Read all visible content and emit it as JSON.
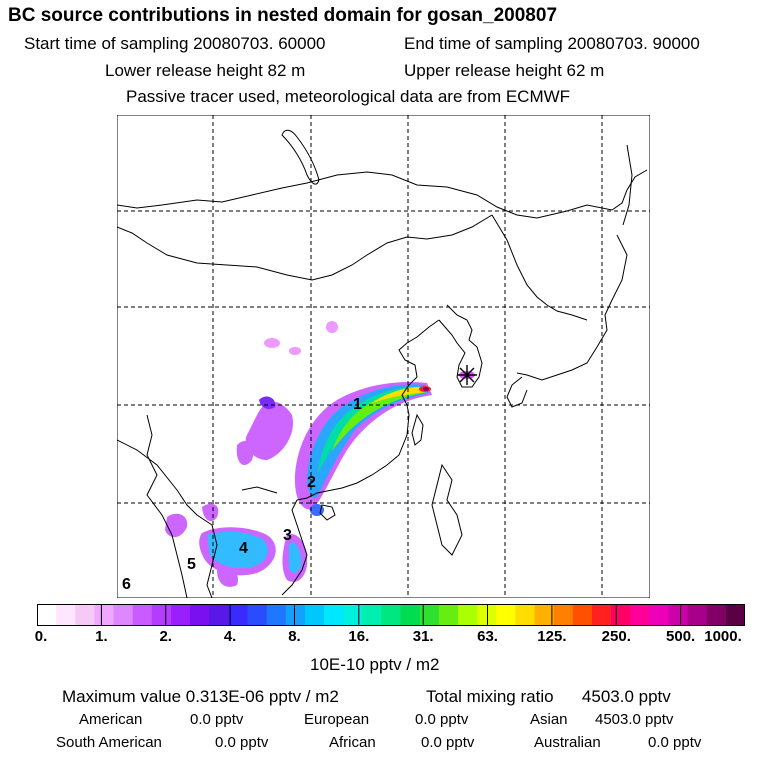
{
  "header": {
    "title": "BC  source contributions in nested domain for gosan_200807",
    "start": "Start time of sampling 20080703. 60000",
    "end": "End time of sampling 20080703. 90000",
    "lower": "Lower release height   82 m",
    "upper": "Upper release height   62 m",
    "tracer": "Passive tracer used, meteorological data are from ECMWF"
  },
  "map": {
    "site_marker": "star-icon",
    "region_labels": [
      "1",
      "2",
      "3",
      "4",
      "5",
      "6"
    ],
    "plume_colors": [
      "#ff00ff",
      "#9933ff",
      "#3333ff",
      "#00ccff",
      "#00ff99",
      "#66ff00",
      "#ffff00",
      "#ff9900",
      "#ff0000",
      "#660033"
    ]
  },
  "colorbar": {
    "colors": [
      "#ffffff",
      "#ffe6ff",
      "#f7c9f7",
      "#f0a8ff",
      "#dd88ff",
      "#c85cff",
      "#b33cff",
      "#9a1fff",
      "#7a10f0",
      "#5a18e8",
      "#3a2aff",
      "#2a4cff",
      "#1e78ff",
      "#14a0ff",
      "#00c8ff",
      "#00e8ff",
      "#00f0e0",
      "#00eeb0",
      "#00e680",
      "#00dd50",
      "#30e030",
      "#66ee10",
      "#aaff00",
      "#ddff00",
      "#ffff00",
      "#ffdd00",
      "#ffb000",
      "#ff8000",
      "#ff5000",
      "#ff2020",
      "#ff0066",
      "#ff0099",
      "#ee00bb",
      "#cc00aa",
      "#a8008a",
      "#800066",
      "#5c0045"
    ],
    "ticks": [
      "0.",
      "1.",
      "2.",
      "4.",
      "8.",
      "16.",
      "31.",
      "63.",
      "125.",
      "250.",
      "500.",
      "1000."
    ],
    "units": "10E-10 pptv / m2"
  },
  "stats": {
    "max": "Maximum value  0.313E-06 pptv / m2",
    "total_label": "Total mixing ratio",
    "total_value": "4503.0 pptv",
    "american_label": "American",
    "american_value": "0.0 pptv",
    "european_label": "European",
    "european_value": "0.0 pptv",
    "asian_label": "Asian",
    "asian_value": "4503.0 pptv",
    "south_american_label": "South American",
    "south_american_value": "0.0 pptv",
    "african_label": "African",
    "african_value": "0.0 pptv",
    "australian_label": "Australian",
    "australian_value": "0.0 pptv"
  }
}
